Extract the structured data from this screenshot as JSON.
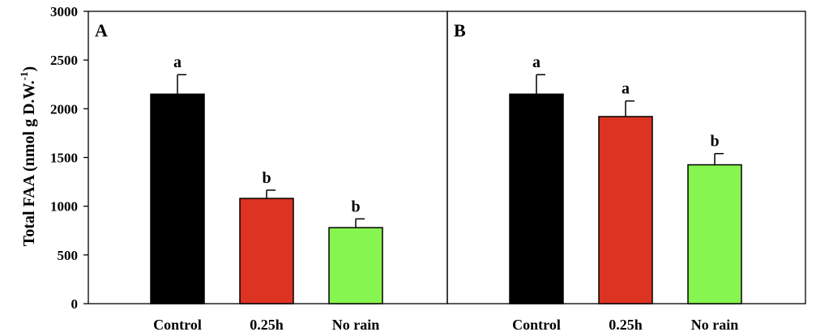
{
  "chart_data": {
    "type": "bar",
    "ylabel": "Total FAA (nmol g D.W.",
    "ylabel_superscript": "-1",
    "ylabel_close": ")",
    "ylim": [
      0,
      3000
    ],
    "yticks": [
      "0",
      "500",
      "1000",
      "1500",
      "2000",
      "2500",
      "3000"
    ],
    "grid": false,
    "categories": [
      "Control",
      "0.25h",
      "No rain"
    ],
    "colors": [
      "#000000",
      "#dc3323",
      "#86f54f"
    ],
    "panels": [
      {
        "label": "A",
        "values": [
          2150,
          1080,
          780
        ],
        "errors": [
          200,
          85,
          90
        ],
        "letters": [
          "a",
          "b",
          "b"
        ]
      },
      {
        "label": "B",
        "values": [
          2150,
          1920,
          1425
        ],
        "errors": [
          200,
          160,
          115
        ],
        "letters": [
          "a",
          "a",
          "b"
        ]
      }
    ]
  }
}
